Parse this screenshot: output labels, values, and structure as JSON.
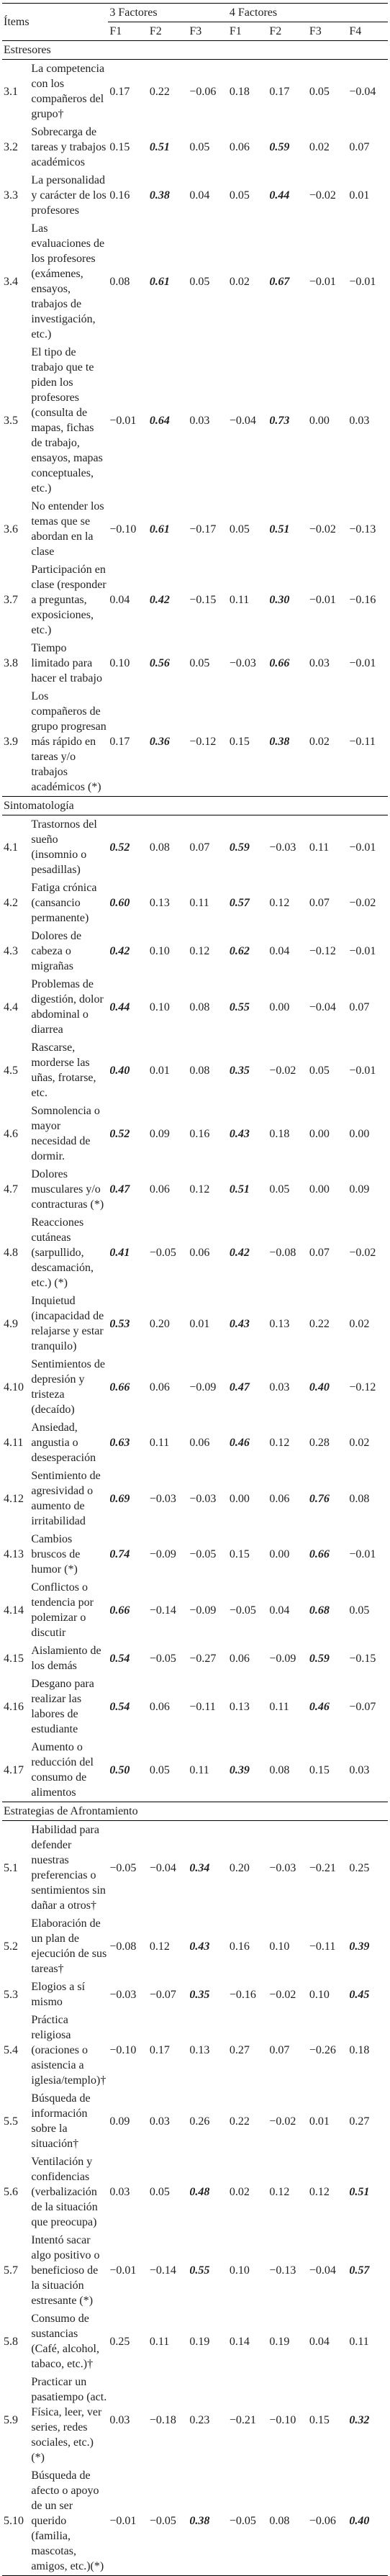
{
  "table": {
    "header": {
      "items": "Ítems",
      "groups": [
        "3 Factores",
        "4 Factores"
      ],
      "factors": [
        "F1",
        "F2",
        "F3",
        "F1",
        "F2",
        "F3",
        "F4"
      ]
    },
    "sections": [
      {
        "title": "Estresores",
        "rows": [
          {
            "id": "3.1",
            "text": "La competencia con los compañeros del grupo†",
            "values": [
              "0.17",
              "0.22",
              "−0.06",
              "0.18",
              "0.17",
              "0.05",
              "−0.04"
            ],
            "bold": []
          },
          {
            "id": "3.2",
            "text": "Sobrecarga de tareas y trabajos académicos",
            "values": [
              "0.15",
              "0.51",
              "0.05",
              "0.06",
              "0.59",
              "0.02",
              "0.07"
            ],
            "bold": [
              1,
              4
            ]
          },
          {
            "id": "3.3",
            "text": "La personalidad y carácter de los profesores",
            "values": [
              "0.16",
              "0.38",
              "0.04",
              "0.05",
              "0.44",
              "−0.02",
              "0.01"
            ],
            "bold": [
              1,
              4
            ]
          },
          {
            "id": "3.4",
            "text": "Las evaluaciones de los profesores (exámenes, ensayos, trabajos de investigación, etc.)",
            "values": [
              "0.08",
              "0.61",
              "0.05",
              "0.02",
              "0.67",
              "−0.01",
              "−0.01"
            ],
            "bold": [
              1,
              4
            ]
          },
          {
            "id": "3.5",
            "text": "El tipo de trabajo que te piden los profesores (consulta de mapas, fichas de trabajo, ensayos, mapas conceptuales, etc.)",
            "values": [
              "−0.01",
              "0.64",
              "0.03",
              "−0.04",
              "0.73",
              "0.00",
              "0.03"
            ],
            "bold": [
              1,
              4
            ]
          },
          {
            "id": "3.6",
            "text": "No entender los temas que se abordan en la clase",
            "values": [
              "−0.10",
              "0.61",
              "−0.17",
              "0.05",
              "0.51",
              "−0.02",
              "−0.13"
            ],
            "bold": [
              1,
              4
            ]
          },
          {
            "id": "3.7",
            "text": "Participación en clase (responder a preguntas, exposiciones, etc.)",
            "values": [
              "0.04",
              "0.42",
              "−0.15",
              "0.11",
              "0.30",
              "−0.01",
              "−0.16"
            ],
            "bold": [
              1,
              4
            ]
          },
          {
            "id": "3.8",
            "text": "Tiempo limitado para hacer el trabajo",
            "values": [
              "0.10",
              "0.56",
              "0.05",
              "−0.03",
              "0.66",
              "0.03",
              "−0.01"
            ],
            "bold": [
              1,
              4
            ]
          },
          {
            "id": "3.9",
            "text": "Los compañeros de grupo progresan más rápido en tareas y/o trabajos académicos (*)",
            "values": [
              "0.17",
              "0.36",
              "−0.12",
              "0.15",
              "0.38",
              "0.02",
              "−0.11"
            ],
            "bold": [
              1,
              4
            ]
          }
        ]
      },
      {
        "title": "Sintomatología",
        "rows": [
          {
            "id": "4.1",
            "text": "Trastornos del sueño (insomnio o pesadillas)",
            "values": [
              "0.52",
              "0.08",
              "0.07",
              "0.59",
              "−0.03",
              "0.11",
              "−0.01"
            ],
            "bold": [
              0,
              3
            ]
          },
          {
            "id": "4.2",
            "text": "Fatiga crónica (cansancio permanente)",
            "values": [
              "0.60",
              "0.13",
              "0.11",
              "0.57",
              "0.12",
              "0.07",
              "−0.02"
            ],
            "bold": [
              0,
              3
            ]
          },
          {
            "id": "4.3",
            "text": "Dolores de cabeza o migrañas",
            "values": [
              "0.42",
              "0.10",
              "0.12",
              "0.62",
              "0.04",
              "−0.12",
              "−0.01"
            ],
            "bold": [
              0,
              3
            ]
          },
          {
            "id": "4.4",
            "text": "Problemas de digestión, dolor abdominal o diarrea",
            "values": [
              "0.44",
              "0.10",
              "0.08",
              "0.55",
              "0.00",
              "−0.04",
              "0.07"
            ],
            "bold": [
              0,
              3
            ]
          },
          {
            "id": "4.5",
            "text": "Rascarse, morderse las uñas, frotarse, etc.",
            "values": [
              "0.40",
              "0.01",
              "0.08",
              "0.35",
              "−0.02",
              "0.05",
              "−0.01"
            ],
            "bold": [
              0,
              3
            ]
          },
          {
            "id": "4.6",
            "text": "Somnolencia o mayor necesidad de dormir.",
            "values": [
              "0.52",
              "0.09",
              "0.16",
              "0.43",
              "0.18",
              "0.00",
              "0.00"
            ],
            "bold": [
              0,
              3
            ]
          },
          {
            "id": "4.7",
            "text": "Dolores musculares y/o contracturas (*)",
            "values": [
              "0.47",
              "0.06",
              "0.12",
              "0.51",
              "0.05",
              "0.00",
              "0.09"
            ],
            "bold": [
              0,
              3
            ]
          },
          {
            "id": "4.8",
            "text": "Reacciones cutáneas (sarpullido, descamación, etc.) (*)",
            "values": [
              "0.41",
              "−0.05",
              "0.06",
              "0.42",
              "−0.08",
              "0.07",
              "−0.02"
            ],
            "bold": [
              0,
              3
            ]
          },
          {
            "id": "4.9",
            "text": "Inquietud (incapacidad de relajarse y estar tranquilo)",
            "values": [
              "0.53",
              "0.20",
              "0.01",
              "0.43",
              "0.13",
              "0.22",
              "0.02"
            ],
            "bold": [
              0,
              3
            ]
          },
          {
            "id": "4.10",
            "text": "Sentimientos de depresión y tristeza (decaído)",
            "values": [
              "0.66",
              "0.06",
              "−0.09",
              "0.47",
              "0.03",
              "0.40",
              "−0.12"
            ],
            "bold": [
              0,
              3,
              5
            ]
          },
          {
            "id": "4.11",
            "text": "Ansiedad, angustia o desesperación",
            "values": [
              "0.63",
              "0.11",
              "0.06",
              "0.46",
              "0.12",
              "0.28",
              "0.02"
            ],
            "bold": [
              0,
              3
            ]
          },
          {
            "id": "4.12",
            "text": "Sentimiento de agresividad o aumento de irritabilidad",
            "values": [
              "0.69",
              "−0.03",
              "−0.03",
              "0.00",
              "0.06",
              "0.76",
              "0.08"
            ],
            "bold": [
              0,
              5
            ]
          },
          {
            "id": "4.13",
            "text": "Cambios bruscos de humor (*)",
            "values": [
              "0.74",
              "−0.09",
              "−0.05",
              "0.15",
              "0.00",
              "0.66",
              "−0.01"
            ],
            "bold": [
              0,
              5
            ]
          },
          {
            "id": "4.14",
            "text": "Conflictos o tendencia por polemizar o discutir",
            "values": [
              "0.66",
              "−0.14",
              "−0.09",
              "−0.05",
              "0.04",
              "0.68",
              "0.05"
            ],
            "bold": [
              0,
              5
            ]
          },
          {
            "id": "4.15",
            "text": "Aislamiento de los demás",
            "values": [
              "0.54",
              "−0.05",
              "−0.27",
              "0.06",
              "−0.09",
              "0.59",
              "−0.15"
            ],
            "bold": [
              0,
              5
            ]
          },
          {
            "id": "4.16",
            "text": "Desgano para realizar las labores de estudiante",
            "values": [
              "0.54",
              "0.06",
              "−0.11",
              "0.13",
              "0.11",
              "0.46",
              "−0.07"
            ],
            "bold": [
              0,
              5
            ]
          },
          {
            "id": "4.17",
            "text": "Aumento o reducción del consumo de alimentos",
            "values": [
              "0.50",
              "0.05",
              "0.11",
              "0.39",
              "0.08",
              "0.15",
              "0.03"
            ],
            "bold": [
              0,
              3
            ]
          }
        ]
      },
      {
        "title": "Estrategias de Afrontamiento",
        "rows": [
          {
            "id": "5.1",
            "text": "Habilidad para defender nuestras preferencias o sentimientos sin dañar a otros†",
            "values": [
              "−0.05",
              "−0.04",
              "0.34",
              "0.20",
              "−0.03",
              "−0.21",
              "0.25"
            ],
            "bold": [
              2
            ]
          },
          {
            "id": "5.2",
            "text": "Elaboración de un plan de ejecución de sus tareas†",
            "values": [
              "−0.08",
              "0.12",
              "0.43",
              "0.16",
              "0.10",
              "−0.11",
              "0.39"
            ],
            "bold": [
              2,
              6
            ]
          },
          {
            "id": "5.3",
            "text": "Elogios a sí mismo",
            "values": [
              "−0.03",
              "−0.07",
              "0.35",
              "−0.16",
              "−0.02",
              "0.10",
              "0.45"
            ],
            "bold": [
              2,
              6
            ]
          },
          {
            "id": "5.4",
            "text": "Práctica religiosa (oraciones o asistencia a iglesia/templo)†",
            "values": [
              "−0.10",
              "0.17",
              "0.13",
              "0.27",
              "0.07",
              "−0.26",
              "0.18"
            ],
            "bold": []
          },
          {
            "id": "5.5",
            "text": "Búsqueda de información sobre la situación†",
            "values": [
              "0.09",
              "0.03",
              "0.26",
              "0.22",
              "−0.02",
              "0.01",
              "0.27"
            ],
            "bold": []
          },
          {
            "id": "5.6",
            "text": "Ventilación y confidencias (verbalización de la situación que preocupa)",
            "values": [
              "0.03",
              "0.05",
              "0.48",
              "0.02",
              "0.12",
              "0.12",
              "0.51"
            ],
            "bold": [
              2,
              6
            ]
          },
          {
            "id": "5.7",
            "text": "Intentó sacar algo positivo o beneficioso de la situación estresante (*)",
            "values": [
              "−0.01",
              "−0.14",
              "0.55",
              "0.10",
              "−0.13",
              "−0.04",
              "0.57"
            ],
            "bold": [
              2,
              6
            ]
          },
          {
            "id": "5.8",
            "text": "Consumo de sustancias (Café, alcohol, tabaco, etc.)†",
            "values": [
              "0.25",
              "0.11",
              "0.19",
              "0.14",
              "0.19",
              "0.04",
              "0.11"
            ],
            "bold": []
          },
          {
            "id": "5.9",
            "text": "Practicar un pasatiempo (act. Física, leer, ver series, redes sociales, etc.)(*)",
            "values": [
              "0.03",
              "−0.18",
              "0.23",
              "−0.21",
              "−0.10",
              "0.15",
              "0.32"
            ],
            "bold": [
              6
            ]
          },
          {
            "id": "5.10",
            "text": "Búsqueda de afecto o apoyo de un ser querido (familia, mascotas, amigos, etc.)(*)",
            "values": [
              "−0.01",
              "−0.05",
              "0.38",
              "−0.05",
              "0.08",
              "−0.06",
              "0.40"
            ],
            "bold": [
              2,
              6
            ]
          }
        ]
      }
    ]
  }
}
